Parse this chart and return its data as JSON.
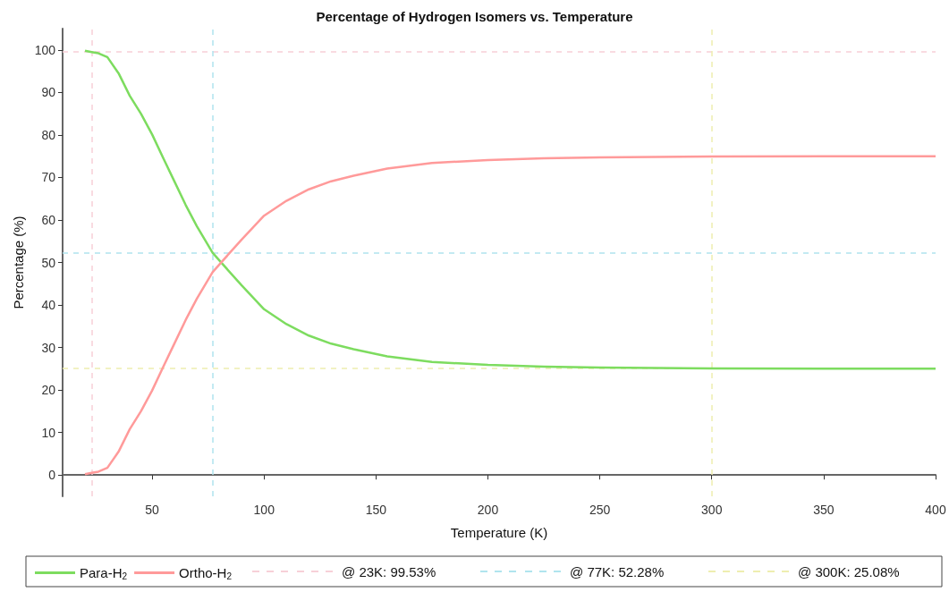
{
  "chart_data": {
    "type": "line",
    "title": "Percentage of Hydrogen Isomers vs. Temperature",
    "xlabel": "Temperature (K)",
    "ylabel": "Percentage (%)",
    "x": [
      20,
      23,
      26,
      30,
      35,
      40,
      45,
      50,
      55,
      60,
      65,
      70,
      77,
      80,
      90,
      100,
      110,
      120,
      130,
      140,
      155,
      175,
      200,
      225,
      250,
      300,
      350,
      400
    ],
    "series": [
      {
        "name": "Para-H$_{2}$",
        "color": "#7ddc5f",
        "values": [
          99.8,
          99.5,
          99.2,
          98.3,
          94.5,
          89.2,
          85,
          80.1,
          74.5,
          69,
          63.5,
          58.5,
          52.3,
          50.5,
          44.6,
          39,
          35.5,
          32.8,
          30.9,
          29.6,
          27.9,
          26.6,
          25.9,
          25.5,
          25.3,
          25.1,
          25.0,
          25.0
        ]
      },
      {
        "name": "Ortho-H$_{2}$",
        "color": "#ff9a9a",
        "values": [
          0.2,
          0.5,
          0.8,
          1.7,
          5.5,
          10.8,
          15,
          19.9,
          25.5,
          31,
          36.5,
          41.5,
          47.7,
          49.5,
          55.4,
          61,
          64.5,
          67.2,
          69.1,
          70.4,
          72.1,
          73.4,
          74.1,
          74.5,
          74.7,
          74.9,
          75.0,
          75.0
        ]
      }
    ],
    "ref_lines": [
      {
        "axis": "x",
        "value": 23,
        "color": "#f7d0d8",
        "line_style": "dashed"
      },
      {
        "axis": "y",
        "value": 99.53,
        "color": "#f7d0d8",
        "line_style": "dashed",
        "label": "@ 23K: 99.53%"
      },
      {
        "axis": "x",
        "value": 77,
        "color": "#b0e4ee",
        "line_style": "dashed"
      },
      {
        "axis": "y",
        "value": 52.28,
        "color": "#b0e4ee",
        "line_style": "dashed",
        "label": "@ 77K: 52.28%"
      },
      {
        "axis": "x",
        "value": 300,
        "color": "#eeeeb0",
        "line_style": "dashed"
      },
      {
        "axis": "y",
        "value": 25.08,
        "color": "#eeeeb0",
        "line_style": "dashed",
        "label": "@ 300K: 25.08%"
      }
    ],
    "xlim": [
      10,
      400
    ],
    "xticks": [
      50,
      100,
      150,
      200,
      250,
      300,
      350,
      400
    ],
    "ylim": [
      -5,
      105
    ],
    "yticks": [
      0,
      10,
      20,
      30,
      40,
      50,
      60,
      70,
      80,
      90,
      100
    ],
    "grid": false,
    "legend": "bottom",
    "marker": "none",
    "line_style": "solid"
  }
}
